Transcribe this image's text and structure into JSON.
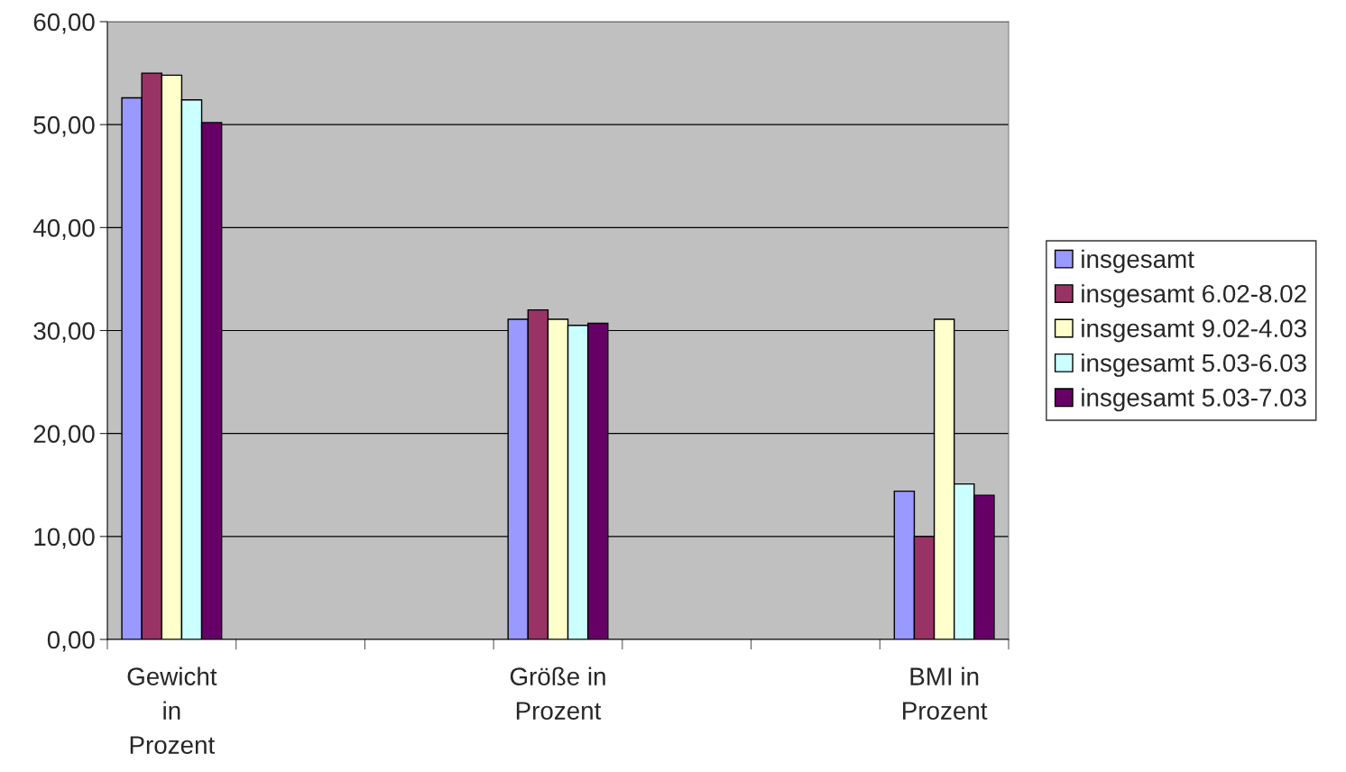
{
  "chart_data": {
    "type": "bar",
    "categories": [
      "Gewicht\nin\nProzent",
      null,
      null,
      "Größe in\nProzent",
      null,
      null,
      "BMI in\nProzent"
    ],
    "series": [
      {
        "name": "insgesamt",
        "color": "#9999ff",
        "values": [
          52.6,
          null,
          null,
          31.1,
          null,
          null,
          14.4
        ]
      },
      {
        "name": "insgesamt 6.02-8.02",
        "color": "#993366",
        "values": [
          55.0,
          null,
          null,
          32.0,
          null,
          null,
          10.0
        ]
      },
      {
        "name": "insgesamt 9.02-4.03",
        "color": "#ffffcc",
        "values": [
          54.8,
          null,
          null,
          31.1,
          null,
          null,
          31.1
        ]
      },
      {
        "name": "insgesamt 5.03-6.03",
        "color": "#ccffff",
        "values": [
          52.4,
          null,
          null,
          30.5,
          null,
          null,
          15.1
        ]
      },
      {
        "name": "insgesamt 5.03-7.03",
        "color": "#660066",
        "values": [
          50.2,
          null,
          null,
          30.7,
          null,
          null,
          14.0
        ]
      }
    ],
    "ylim": [
      0,
      60
    ],
    "yticks": [
      {
        "value": 0,
        "label": "0,00"
      },
      {
        "value": 10,
        "label": "10,00"
      },
      {
        "value": 20,
        "label": "20,00"
      },
      {
        "value": 30,
        "label": "30,00"
      },
      {
        "value": 40,
        "label": "40,00"
      },
      {
        "value": 50,
        "label": "50,00"
      },
      {
        "value": 60,
        "label": "60,00"
      }
    ],
    "grid": "y",
    "legend": "right"
  }
}
